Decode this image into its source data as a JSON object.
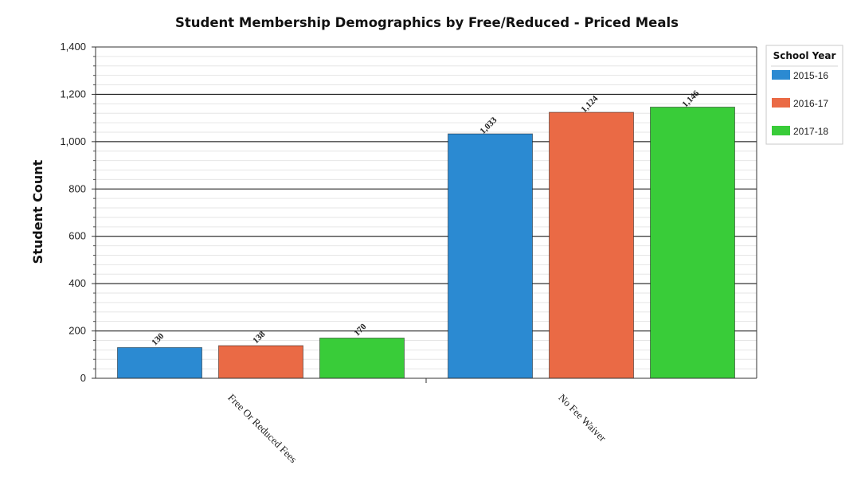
{
  "chart_data": {
    "type": "bar",
    "title": "Student Membership Demographics by Free/Reduced - Priced Meals",
    "xlabel": "",
    "ylabel": "Student Count",
    "categories": [
      "Free Or Reduced Fees",
      "No Fee Waiver"
    ],
    "series": [
      {
        "name": "2015-16",
        "color": "#2b8ad2",
        "values": [
          130,
          1033
        ],
        "labels": [
          "130",
          "1,033"
        ]
      },
      {
        "name": "2016-17",
        "color": "#ea6a45",
        "values": [
          138,
          1124
        ],
        "labels": [
          "138",
          "1,124"
        ]
      },
      {
        "name": "2017-18",
        "color": "#39cc39",
        "values": [
          170,
          1146
        ],
        "labels": [
          "170",
          "1,146"
        ]
      }
    ],
    "ylim": [
      0,
      1400
    ],
    "yticks": [
      "0",
      "200",
      "400",
      "600",
      "800",
      "1,000",
      "1,200",
      "1,400"
    ],
    "grid": true,
    "legend": {
      "title": "School Year",
      "position": "top-right"
    }
  }
}
